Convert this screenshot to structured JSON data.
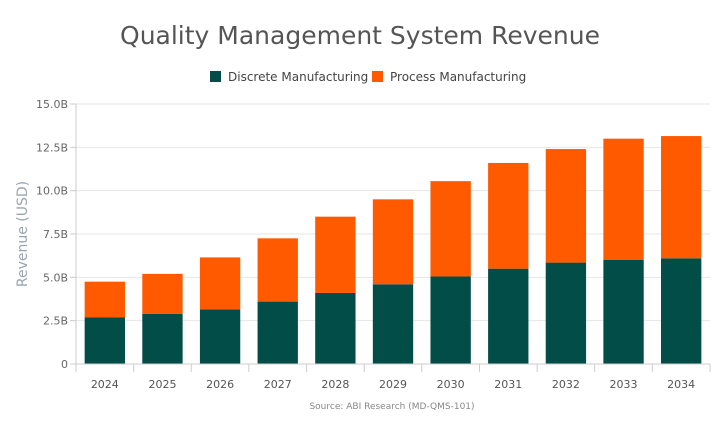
{
  "chart_data": {
    "type": "bar",
    "stacked": true,
    "title": "Quality Management System Revenue",
    "ylabel": "Revenue (USD)",
    "xlabel": "",
    "source": "Source: ABI Research (MD-QMS-101)",
    "categories": [
      "2024",
      "2025",
      "2026",
      "2027",
      "2028",
      "2029",
      "2030",
      "2031",
      "2032",
      "2033",
      "2034"
    ],
    "series": [
      {
        "name": "Discrete Manufacturing",
        "color": "#024d48",
        "values": [
          2.7,
          2.9,
          3.15,
          3.6,
          4.1,
          4.6,
          5.05,
          5.5,
          5.85,
          6.0,
          6.1
        ]
      },
      {
        "name": "Process Manufacturing",
        "color": "#ff5a00",
        "values": [
          2.05,
          2.3,
          3.0,
          3.65,
          4.4,
          4.9,
          5.5,
          6.1,
          6.55,
          7.0,
          7.05
        ]
      }
    ],
    "ylim": [
      0,
      15
    ],
    "yticks": [
      0,
      2.5,
      5,
      7.5,
      10,
      12.5,
      15
    ],
    "ytick_labels": [
      "0",
      "2.5B",
      "5.0B",
      "7.5B",
      "10.0B",
      "12.5B",
      "15.0B"
    ],
    "legend_position": "top-center",
    "grid": true
  }
}
